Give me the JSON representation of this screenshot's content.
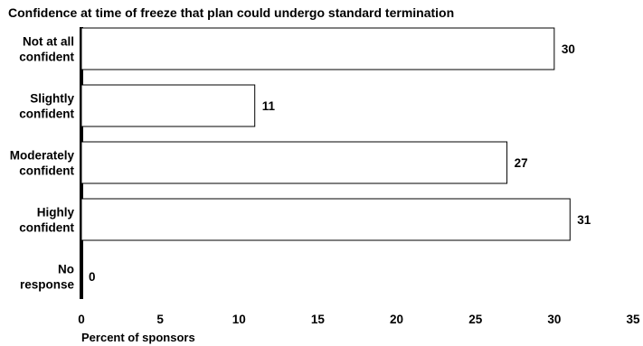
{
  "chart_data": {
    "type": "bar",
    "orientation": "horizontal",
    "title": "Confidence at time of freeze that plan could undergo standard termination",
    "xlabel": "Percent of sponsors",
    "ylabel": "",
    "categories": [
      [
        "Not at all",
        "confident"
      ],
      [
        "Slightly",
        "confident"
      ],
      [
        "Moderately",
        "confident"
      ],
      [
        "Highly",
        "confident"
      ],
      [
        "No",
        "response"
      ]
    ],
    "values": [
      30,
      11,
      27,
      31,
      0
    ],
    "xlim": [
      0,
      35
    ],
    "xticks": [
      0,
      5,
      10,
      15,
      20,
      25,
      30,
      35
    ],
    "grid": false,
    "bar_fill": "#ffffff",
    "bar_stroke": "#000000"
  }
}
